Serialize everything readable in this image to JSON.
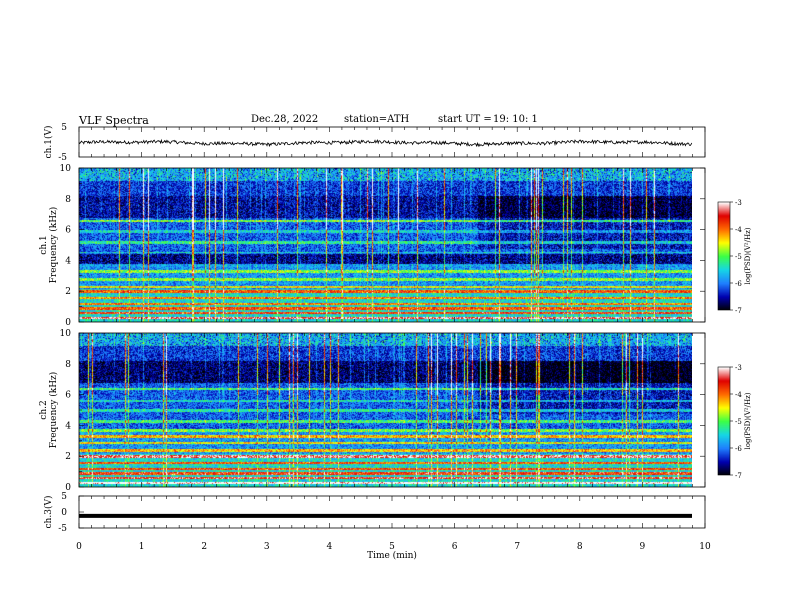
{
  "header": {
    "title": "VLF  Spectra",
    "date": "Dec.28, 2022",
    "station": "station=ATH",
    "start_label": "start  UT  =",
    "start_time": "19: 10: 1"
  },
  "chart_data": [
    {
      "type": "line",
      "ylabel": "ch.1(V)",
      "ylim": [
        -5,
        5
      ],
      "yticks": [
        "5",
        "-5"
      ],
      "description_series": "voltage trace near -0.3 V with small fluctuations",
      "xlim": [
        0,
        10
      ]
    },
    {
      "type": "heatmap",
      "ylabel": "ch.1\nFrequency  (kHz)",
      "ylim": [
        0,
        10
      ],
      "yticks": [
        "0",
        "2",
        "4",
        "6",
        "8",
        "10"
      ],
      "xlim": [
        0,
        10
      ],
      "colorbar": {
        "label": "log(PSD)(V²/Hz)",
        "range": [
          -7,
          -3
        ],
        "ticks": [
          "-3",
          "-4",
          "-5",
          "-6",
          "-7"
        ]
      },
      "colors": [
        "#000000",
        "#0000b0",
        "#1f7fff",
        "#16d6e6",
        "#3cff46",
        "#ffff00",
        "#ff6a00",
        "#e00000",
        "#ffffff"
      ]
    },
    {
      "type": "heatmap",
      "ylabel": "ch.2\nFrequency  (kHz)",
      "ylim": [
        0,
        10
      ],
      "yticks": [
        "0",
        "2",
        "4",
        "6",
        "8",
        "10"
      ],
      "xlim": [
        0,
        10
      ],
      "colorbar": {
        "label": "log(PSD)(V²/Hz)",
        "range": [
          -7,
          -3
        ],
        "ticks": [
          "-3",
          "-4",
          "-5",
          "-6",
          "-7"
        ]
      }
    },
    {
      "type": "line",
      "ylabel": "ch.3(V)",
      "ylim": [
        -5,
        5
      ],
      "yticks": [
        "5",
        "0",
        "-5"
      ],
      "xlim": [
        0,
        10
      ],
      "xticks": [
        "0",
        "1",
        "2",
        "3",
        "4",
        "5",
        "6",
        "7",
        "8",
        "9",
        "10"
      ],
      "xlabel": "Time  (min)",
      "series_value": -1.2
    }
  ]
}
